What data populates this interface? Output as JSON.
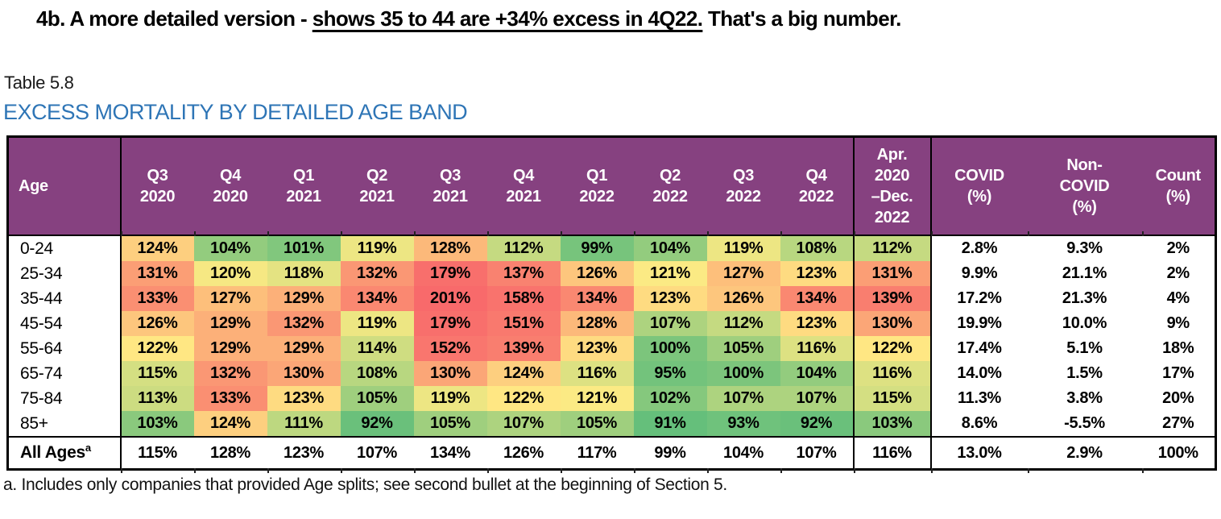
{
  "headline": {
    "part1": "4b. A more detailed version - ",
    "underlined": "shows 35 to 44 are +34% excess in 4Q22.",
    "part2": " That's a big number."
  },
  "caption": "Table 5.8",
  "title": "EXCESS MORTALITY BY DETAILED AGE BAND",
  "colors": {
    "header_bg": "#864180",
    "header_text": "#ffffff",
    "title_blue": "#2E75B6",
    "scale_green": "#63BE7B",
    "scale_yellow": "#FFEB84",
    "scale_red": "#F8696B"
  },
  "chart_data": {
    "type": "heatmap",
    "title": "EXCESS MORTALITY BY DETAILED AGE BAND",
    "x_labels": [
      "Q3 2020",
      "Q4 2020",
      "Q1 2021",
      "Q2 2021",
      "Q3 2021",
      "Q4 2021",
      "Q1 2022",
      "Q2 2022",
      "Q3 2022",
      "Q4 2022",
      "Apr. 2020–Dec. 2022"
    ],
    "y_labels": [
      "0-24",
      "25-34",
      "35-44",
      "45-54",
      "55-64",
      "65-74",
      "75-84",
      "85+"
    ],
    "values_percent": [
      [
        124,
        104,
        101,
        119,
        128,
        112,
        99,
        104,
        119,
        108,
        112
      ],
      [
        131,
        120,
        118,
        132,
        179,
        137,
        126,
        121,
        127,
        123,
        131
      ],
      [
        133,
        127,
        129,
        134,
        201,
        158,
        134,
        123,
        126,
        134,
        139
      ],
      [
        126,
        129,
        132,
        119,
        179,
        151,
        128,
        107,
        112,
        123,
        130
      ],
      [
        122,
        129,
        129,
        114,
        152,
        139,
        123,
        100,
        105,
        116,
        122
      ],
      [
        115,
        132,
        130,
        108,
        130,
        124,
        116,
        95,
        100,
        104,
        116
      ],
      [
        113,
        133,
        123,
        105,
        119,
        122,
        121,
        102,
        107,
        107,
        115
      ],
      [
        103,
        124,
        111,
        92,
        105,
        107,
        105,
        91,
        93,
        92,
        103
      ]
    ],
    "color_scale": "green(low) to yellow(mid) to red(high), rank-based"
  },
  "table": {
    "columns": [
      {
        "label": "Age"
      },
      {
        "label": "Q3\n2020"
      },
      {
        "label": "Q4\n2020"
      },
      {
        "label": "Q1\n2021"
      },
      {
        "label": "Q2\n2021"
      },
      {
        "label": "Q3\n2021"
      },
      {
        "label": "Q4\n2021"
      },
      {
        "label": "Q1\n2022"
      },
      {
        "label": "Q2\n2022"
      },
      {
        "label": "Q3\n2022"
      },
      {
        "label": "Q4\n2022"
      },
      {
        "label": "Apr.\n2020\n–Dec.\n2022"
      },
      {
        "label": "COVID\n(%)"
      },
      {
        "label": "Non-\nCOVID\n(%)"
      },
      {
        "label": "Count\n(%)"
      }
    ],
    "rows": [
      {
        "age": "0-24",
        "quarters": [
          "124%",
          "104%",
          "101%",
          "119%",
          "128%",
          "112%",
          "99%",
          "104%",
          "119%",
          "108%"
        ],
        "period": "112%",
        "covid": "2.8%",
        "non_covid": "9.3%",
        "count": "2%"
      },
      {
        "age": "25-34",
        "quarters": [
          "131%",
          "120%",
          "118%",
          "132%",
          "179%",
          "137%",
          "126%",
          "121%",
          "127%",
          "123%"
        ],
        "period": "131%",
        "covid": "9.9%",
        "non_covid": "21.1%",
        "count": "2%"
      },
      {
        "age": "35-44",
        "quarters": [
          "133%",
          "127%",
          "129%",
          "134%",
          "201%",
          "158%",
          "134%",
          "123%",
          "126%",
          "134%"
        ],
        "period": "139%",
        "covid": "17.2%",
        "non_covid": "21.3%",
        "count": "4%"
      },
      {
        "age": "45-54",
        "quarters": [
          "126%",
          "129%",
          "132%",
          "119%",
          "179%",
          "151%",
          "128%",
          "107%",
          "112%",
          "123%"
        ],
        "period": "130%",
        "covid": "19.9%",
        "non_covid": "10.0%",
        "count": "9%"
      },
      {
        "age": "55-64",
        "quarters": [
          "122%",
          "129%",
          "129%",
          "114%",
          "152%",
          "139%",
          "123%",
          "100%",
          "105%",
          "116%"
        ],
        "period": "122%",
        "covid": "17.4%",
        "non_covid": "5.1%",
        "count": "18%"
      },
      {
        "age": "65-74",
        "quarters": [
          "115%",
          "132%",
          "130%",
          "108%",
          "130%",
          "124%",
          "116%",
          "95%",
          "100%",
          "104%"
        ],
        "period": "116%",
        "covid": "14.0%",
        "non_covid": "1.5%",
        "count": "17%"
      },
      {
        "age": "75-84",
        "quarters": [
          "113%",
          "133%",
          "123%",
          "105%",
          "119%",
          "122%",
          "121%",
          "102%",
          "107%",
          "107%"
        ],
        "period": "115%",
        "covid": "11.3%",
        "non_covid": "3.8%",
        "count": "20%"
      },
      {
        "age": "85+",
        "quarters": [
          "103%",
          "124%",
          "111%",
          "92%",
          "105%",
          "107%",
          "105%",
          "91%",
          "93%",
          "92%"
        ],
        "period": "103%",
        "covid": "8.6%",
        "non_covid": "-5.5%",
        "count": "27%"
      }
    ],
    "summary": {
      "age": "All Ages",
      "age_superscript": "a",
      "quarters": [
        "115%",
        "128%",
        "123%",
        "107%",
        "134%",
        "126%",
        "117%",
        "99%",
        "104%",
        "107%"
      ],
      "period": "116%",
      "covid": "13.0%",
      "non_covid": "2.9%",
      "count": "100%"
    },
    "footnote": "a. Includes only companies that provided Age splits; see second bullet at the beginning of Section 5."
  }
}
